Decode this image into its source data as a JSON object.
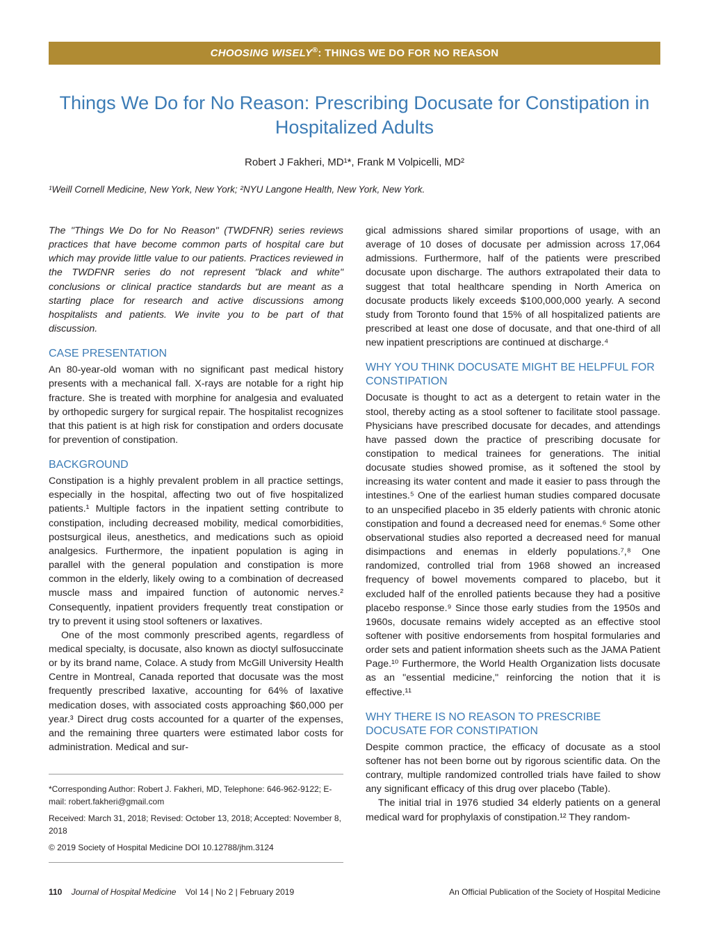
{
  "banner": {
    "prefix": "CHOOSING WISELY",
    "reg": "®",
    "suffix": ": THINGS WE DO FOR NO REASON",
    "bg": "#b08b33",
    "fg": "#ffffff"
  },
  "title": "Things We Do for No Reason: Prescribing Docusate for Constipation in Hospitalized Adults",
  "authors": "Robert J Fakheri, MD¹*, Frank M Volpicelli, MD²",
  "affil": "¹Weill Cornell Medicine, New York, New York; ²NYU Langone Health, New York, New York.",
  "intro": "The \"Things We Do for No Reason\" (TWDFNR) series reviews practices that have become common parts of hospital care but which may provide little value to our patients. Practices reviewed in the TWDFNR series do not represent \"black and white\" conclusions or clinical practice standards but are meant as a starting place for research and active discussions among hospitalists and patients. We invite you to be part of that discussion.",
  "sec1": {
    "h": "CASE PRESENTATION",
    "p": "An 80-year-old woman with no significant past medical history presents with a mechanical fall. X-rays are notable for a right hip fracture. She is treated with morphine for analgesia and evaluated by orthopedic surgery for surgical repair. The hospitalist recognizes that this patient is at high risk for constipation and orders docusate for prevention of constipation."
  },
  "sec2": {
    "h": "BACKGROUND",
    "p1": "Constipation is a highly prevalent problem in all practice settings, especially in the hospital, affecting two out of five hospitalized patients.¹ Multiple factors in the inpatient setting contribute to constipation, including decreased mobility, medical comorbidities, postsurgical ileus, anesthetics, and medications such as opioid analgesics. Furthermore, the inpatient population is aging in parallel with the general population and constipation is more common in the elderly, likely owing to a combination of decreased muscle mass and impaired function of autonomic nerves.² Consequently, inpatient providers frequently treat constipation or try to prevent it using stool softeners or laxatives.",
    "p2": "One of the most commonly prescribed agents, regardless of medical specialty, is docusate, also known as dioctyl sulfosuccinate or by its brand name, Colace. A study from McGill University Health Centre in Montreal, Canada reported that docusate was the most frequently prescribed laxative, accounting for 64% of laxative medication doses, with associated costs approaching $60,000 per year.³ Direct drug costs accounted for a quarter of the expenses, and the remaining three quarters were estimated labor costs for administration. Medical and sur-"
  },
  "col2top": "gical admissions shared similar proportions of usage, with an average of 10 doses of docusate per admission across 17,064 admissions. Furthermore, half of the patients were prescribed docusate upon discharge. The authors extrapolated their data to suggest that total healthcare spending in North America on docusate products likely exceeds $100,000,000 yearly. A second study from Toronto found that 15% of all hospitalized patients are prescribed at least one dose of docusate, and that one-third of all new inpatient prescriptions are continued at discharge.⁴",
  "sec3": {
    "h": "WHY YOU THINK DOCUSATE MIGHT BE HELPFUL FOR CONSTIPATION",
    "p": "Docusate is thought to act as a detergent to retain water in the stool, thereby acting as a stool softener to facilitate stool passage. Physicians have prescribed docusate for decades, and attendings have passed down the practice of prescribing docusate for constipation to medical trainees for generations. The initial docusate studies showed promise, as it softened the stool by increasing its water content and made it easier to pass through the intestines.⁵ One of the earliest human studies compared docusate to an unspecified placebo in 35 elderly patients with chronic atonic constipation and found a decreased need for enemas.⁶ Some other observational studies also reported a decreased need for manual disimpactions and enemas in elderly populations.⁷,⁸ One randomized, controlled trial from 1968 showed an increased frequency of bowel movements compared to placebo, but it excluded half of the enrolled patients because they had a positive placebo response.⁹ Since those early studies from the 1950s and 1960s, docusate remains widely accepted as an effective stool softener with positive endorsements from hospital formularies and order sets and patient information sheets such as the JAMA Patient Page.¹⁰ Furthermore, the World Health Organization lists docusate as an \"essential medicine,\" reinforcing the notion that it is effective.¹¹"
  },
  "sec4": {
    "h": "WHY THERE IS NO REASON TO PRESCRIBE DOCUSATE FOR CONSTIPATION",
    "p1": "Despite common practice, the efficacy of docusate as a stool softener has not been borne out by rigorous scientific data. On the contrary, multiple randomized controlled trials have failed to show any significant efficacy of this drug over placebo (Table).",
    "p2": "The initial trial in 1976 studied 34 elderly patients on a general medical ward for prophylaxis of constipation.¹² They random-"
  },
  "footbox": {
    "corr": "*Corresponding Author: Robert J. Fakheri, MD, Telephone: 646-962-9122; E-mail: robert.fakheri@gmail.com",
    "dates": "Received: March 31, 2018; Revised: October 13, 2018; Accepted: November 8, 2018",
    "copy": "© 2019 Society of Hospital Medicine DOI 10.12788/jhm.3124"
  },
  "runfoot": {
    "page": "110",
    "journal": "Journal of Hospital Medicine",
    "vol": "Vol 14  |  No 2  |  February 2019",
    "right": "An Official Publication of the Society of Hospital Medicine"
  },
  "colors": {
    "accent": "#3b7bb5",
    "banner_bg": "#b08b33",
    "text": "#231f20"
  }
}
